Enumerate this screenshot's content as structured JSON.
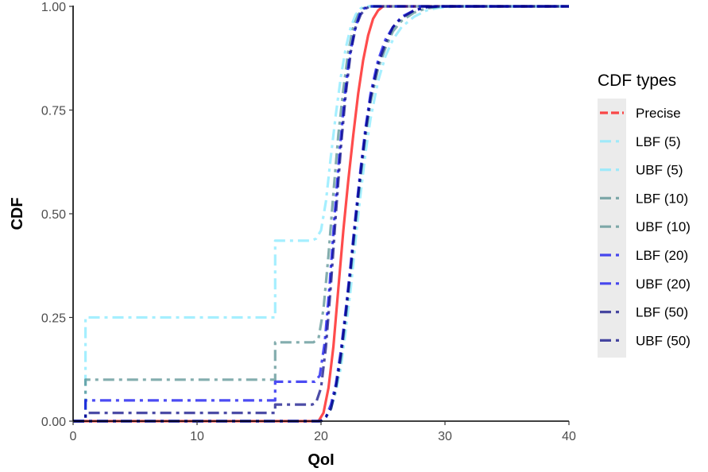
{
  "chart_data": {
    "type": "line",
    "xlabel": "QoI",
    "ylabel": "CDF",
    "xlim": [
      0,
      40
    ],
    "ylim": [
      0,
      1
    ],
    "x_ticks": [
      0,
      10,
      20,
      30,
      40
    ],
    "y_ticks": [
      0,
      0.25,
      0.5,
      0.75,
      1
    ],
    "x_tick_labels": [
      "0",
      "10",
      "20",
      "30",
      "40"
    ],
    "y_tick_labels": [
      "0.00",
      "0.25",
      "0.50",
      "0.75",
      "1.00"
    ],
    "grid": false,
    "legend": {
      "title": "CDF types",
      "position": "right",
      "background": "#ebebeb"
    },
    "series": [
      {
        "name": "Precise",
        "color": "#ff0000",
        "opacity": 0.7,
        "dash": "solid",
        "legend_dash": "long-dash",
        "x": [
          0,
          19.8,
          20.2,
          20.6,
          21.0,
          21.4,
          21.8,
          22.2,
          22.6,
          23.0,
          23.4,
          23.8,
          24.2,
          24.6,
          25.0,
          40
        ],
        "y": [
          0,
          0,
          0.02,
          0.08,
          0.18,
          0.32,
          0.46,
          0.58,
          0.69,
          0.79,
          0.87,
          0.93,
          0.97,
          0.99,
          1.0,
          1.0
        ]
      },
      {
        "name": "LBF (5)",
        "color": "#7fe8ff",
        "opacity": 0.7,
        "dash": "dashdot",
        "x": [
          0,
          20.0,
          20.4,
          20.8,
          21.2,
          21.6,
          22.0,
          22.4,
          22.8,
          23.2,
          23.6,
          24.0,
          24.6,
          25.2,
          25.8,
          26.5,
          27.5,
          28.5,
          29.5,
          31.0,
          40
        ],
        "y": [
          0,
          0,
          0.01,
          0.03,
          0.07,
          0.13,
          0.22,
          0.32,
          0.44,
          0.55,
          0.65,
          0.73,
          0.82,
          0.88,
          0.92,
          0.95,
          0.975,
          0.99,
          0.997,
          1.0,
          1.0
        ]
      },
      {
        "name": "UBF (5)",
        "color": "#7fe8ff",
        "opacity": 0.7,
        "dash": "dashdot",
        "x": [
          0,
          1,
          1,
          16.3,
          16.3,
          19.2,
          19.6,
          20.0,
          20.4,
          20.8,
          21.2,
          21.6,
          22.0,
          22.4,
          22.8,
          23.2,
          23.6,
          40
        ],
        "y": [
          0,
          0,
          0.25,
          0.25,
          0.435,
          0.435,
          0.44,
          0.46,
          0.53,
          0.64,
          0.74,
          0.83,
          0.9,
          0.95,
          0.98,
          0.995,
          1.0,
          1.0
        ]
      },
      {
        "name": "LBF (10)",
        "color": "#4f8a8b",
        "opacity": 0.7,
        "dash": "dashdot",
        "x": [
          0,
          20.0,
          20.4,
          20.8,
          21.2,
          21.6,
          22.0,
          22.4,
          22.8,
          23.2,
          23.6,
          24.0,
          24.6,
          25.2,
          25.8,
          26.5,
          27.5,
          28.5,
          29.5,
          30.5,
          40
        ],
        "y": [
          0,
          0,
          0.01,
          0.03,
          0.08,
          0.15,
          0.25,
          0.36,
          0.48,
          0.59,
          0.69,
          0.77,
          0.85,
          0.9,
          0.94,
          0.965,
          0.985,
          0.995,
          0.999,
          1.0,
          1.0
        ]
      },
      {
        "name": "UBF (10)",
        "color": "#4f8a8b",
        "opacity": 0.7,
        "dash": "dashdot",
        "x": [
          0,
          1,
          1,
          16.3,
          16.3,
          19.4,
          19.8,
          20.2,
          20.6,
          21.0,
          21.4,
          21.8,
          22.2,
          22.6,
          23.0,
          23.4,
          23.8,
          40
        ],
        "y": [
          0,
          0,
          0.1,
          0.1,
          0.19,
          0.19,
          0.2,
          0.27,
          0.4,
          0.55,
          0.69,
          0.8,
          0.89,
          0.95,
          0.98,
          0.995,
          1.0,
          1.0
        ]
      },
      {
        "name": "LBF (20)",
        "color": "#0000ee",
        "opacity": 0.7,
        "dash": "dashdot",
        "x": [
          0,
          20.0,
          20.4,
          20.8,
          21.2,
          21.6,
          22.0,
          22.4,
          22.8,
          23.2,
          23.6,
          24.0,
          24.6,
          25.2,
          25.8,
          26.5,
          27.5,
          28.5,
          29.5,
          40
        ],
        "y": [
          0,
          0,
          0.01,
          0.04,
          0.09,
          0.17,
          0.27,
          0.38,
          0.5,
          0.61,
          0.71,
          0.79,
          0.87,
          0.92,
          0.95,
          0.975,
          0.99,
          0.998,
          1.0,
          1.0
        ]
      },
      {
        "name": "UBF (20)",
        "color": "#0000ee",
        "opacity": 0.7,
        "dash": "dashdot",
        "x": [
          0,
          1,
          1,
          16.3,
          16.3,
          19.5,
          19.9,
          20.3,
          20.7,
          21.1,
          21.5,
          21.9,
          22.3,
          22.7,
          23.1,
          23.5,
          23.9,
          40
        ],
        "y": [
          0,
          0,
          0.05,
          0.05,
          0.095,
          0.095,
          0.11,
          0.19,
          0.33,
          0.5,
          0.65,
          0.78,
          0.88,
          0.94,
          0.98,
          0.995,
          1.0,
          1.0
        ]
      },
      {
        "name": "LBF (50)",
        "color": "#000080",
        "opacity": 0.7,
        "dash": "dashdot",
        "x": [
          0,
          20.0,
          20.4,
          20.8,
          21.2,
          21.6,
          22.0,
          22.4,
          22.8,
          23.2,
          23.6,
          24.0,
          24.6,
          25.2,
          25.8,
          26.5,
          27.5,
          28.5,
          29.5,
          40
        ],
        "y": [
          0,
          0,
          0.01,
          0.03,
          0.08,
          0.16,
          0.26,
          0.37,
          0.49,
          0.6,
          0.7,
          0.78,
          0.86,
          0.91,
          0.95,
          0.972,
          0.99,
          0.998,
          1.0,
          1.0
        ]
      },
      {
        "name": "UBF (50)",
        "color": "#000080",
        "opacity": 0.7,
        "dash": "dashdot",
        "x": [
          0,
          1,
          1,
          16.3,
          16.3,
          19.3,
          19.6,
          20.0,
          20.4,
          20.8,
          21.2,
          21.6,
          22.0,
          22.4,
          22.8,
          23.2,
          23.6,
          24.0,
          40
        ],
        "y": [
          0,
          0,
          0.02,
          0.02,
          0.04,
          0.04,
          0.045,
          0.08,
          0.18,
          0.33,
          0.5,
          0.66,
          0.79,
          0.89,
          0.95,
          0.98,
          0.995,
          1.0,
          1.0
        ]
      }
    ]
  }
}
